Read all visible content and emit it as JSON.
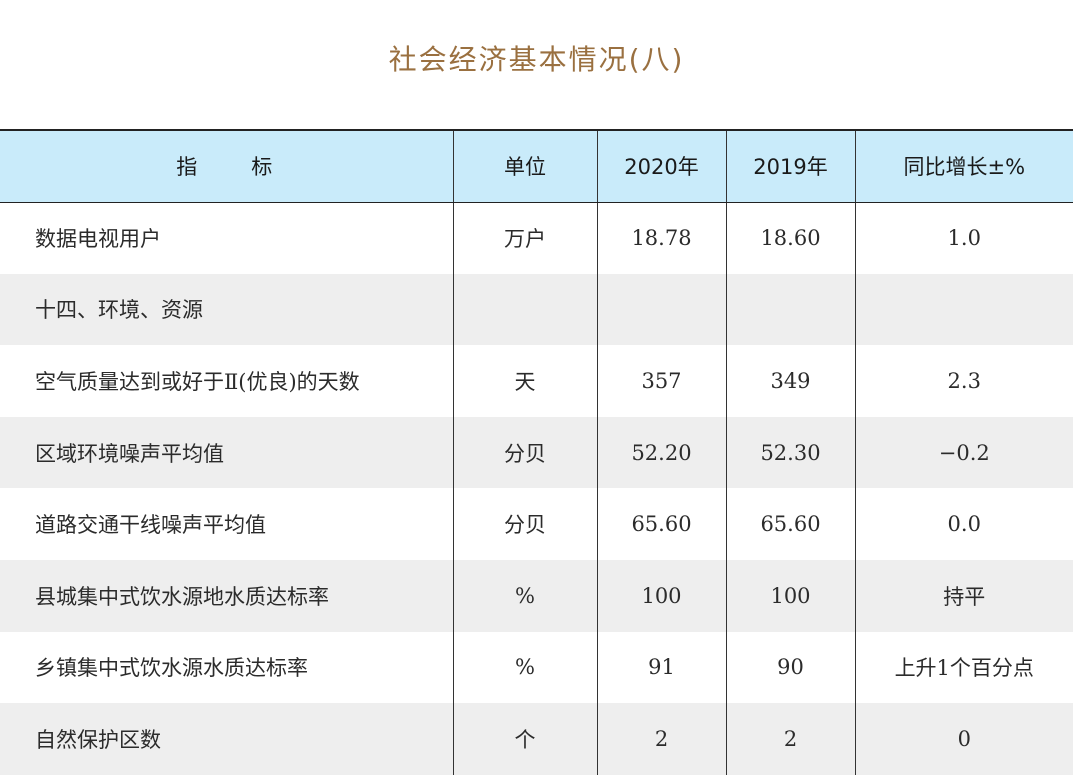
{
  "title": "社会经济基本情况(八)",
  "table": {
    "headers": [
      "指　　标",
      "单位",
      "2020年",
      "2019年",
      "同比增长±%"
    ],
    "rows": [
      [
        "数据电视用户",
        "万户",
        "18.78",
        "18.60",
        "1.0"
      ],
      [
        "十四、环境、资源",
        "",
        "",
        "",
        ""
      ],
      [
        "空气质量达到或好于Ⅱ(优良)的天数",
        "天",
        "357",
        "349",
        "2.3"
      ],
      [
        "区域环境噪声平均值",
        "分贝",
        "52.20",
        "52.30",
        "−0.2"
      ],
      [
        "道路交通干线噪声平均值",
        "分贝",
        "65.60",
        "65.60",
        "0.0"
      ],
      [
        "县城集中式饮水源地水质达标率",
        "%",
        "100",
        "100",
        "持平"
      ],
      [
        "乡镇集中式饮水源水质达标率",
        "%",
        "91",
        "90",
        "上升1个百分点"
      ],
      [
        "自然保护区数",
        "个",
        "2",
        "2",
        "0"
      ]
    ]
  },
  "colors": {
    "title": "#9a7040",
    "header_bg": "#c9ebfa",
    "stripe_bg": "#eeeeee"
  }
}
